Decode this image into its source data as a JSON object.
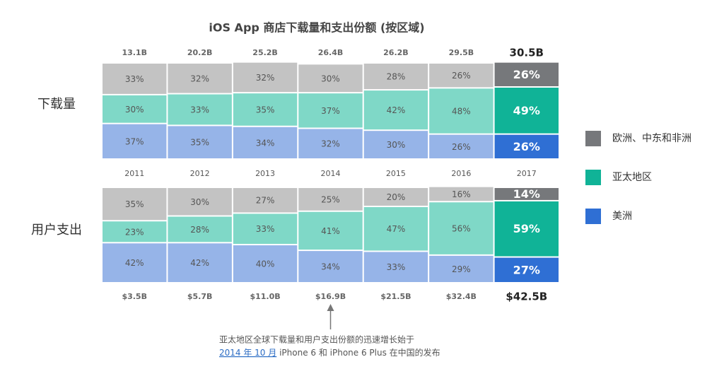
{
  "chart_data": {
    "type": "stacked-bar",
    "title": "iOS App 商店下载量和支出份额 (按区域)",
    "categories": [
      "2011",
      "2012",
      "2013",
      "2014",
      "2015",
      "2016",
      "2017"
    ],
    "ylim": [
      0,
      100
    ],
    "series": [
      {
        "name": "欧洲、中东和非洲",
        "color": "#76787b",
        "light_color": "#c3c3c3"
      },
      {
        "name": "亚太地区",
        "color": "#10b397",
        "light_color": "#7fd8c7"
      },
      {
        "name": "美洲",
        "color": "#2f6fd4",
        "light_color": "#96b4e8"
      }
    ],
    "panels": [
      {
        "label": "下载量",
        "totals": [
          "13.1B",
          "20.2B",
          "25.2B",
          "26.4B",
          "26.2B",
          "29.5B",
          "30.5B"
        ],
        "values": [
          [
            33,
            32,
            32,
            30,
            28,
            26,
            26
          ],
          [
            30,
            33,
            35,
            37,
            42,
            48,
            49
          ],
          [
            37,
            35,
            34,
            32,
            30,
            26,
            26
          ]
        ],
        "value_labels": [
          [
            "33%",
            "32%",
            "32%",
            "30%",
            "28%",
            "26%",
            "26%"
          ],
          [
            "30%",
            "33%",
            "35%",
            "37%",
            "42%",
            "48%",
            "49%"
          ],
          [
            "37%",
            "35%",
            "34%",
            "32%",
            "30%",
            "26%",
            "26%"
          ]
        ]
      },
      {
        "label": "用户支出",
        "totals": [
          "$3.5B",
          "$5.7B",
          "$11.0B",
          "$16.9B",
          "$21.5B",
          "$32.4B",
          "$42.5B"
        ],
        "values": [
          [
            35,
            30,
            27,
            25,
            20,
            16,
            14
          ],
          [
            23,
            28,
            33,
            41,
            47,
            56,
            59
          ],
          [
            42,
            42,
            40,
            34,
            33,
            29,
            27
          ]
        ],
        "value_labels": [
          [
            "35%",
            "30%",
            "27%",
            "25%",
            "20%",
            "16%",
            "14%"
          ],
          [
            "23%",
            "28%",
            "33%",
            "41%",
            "47%",
            "56%",
            "59%"
          ],
          [
            "42%",
            "42%",
            "40%",
            "34%",
            "33%",
            "29%",
            "27%"
          ]
        ]
      }
    ],
    "annotation": {
      "line1": "亚太地区全球下载量和用户支出份额的迅速增长始于",
      "link": "2014 年 10 月",
      "line2": " iPhone 6 和 iPhone 6 Plus 在中国的发布"
    }
  }
}
